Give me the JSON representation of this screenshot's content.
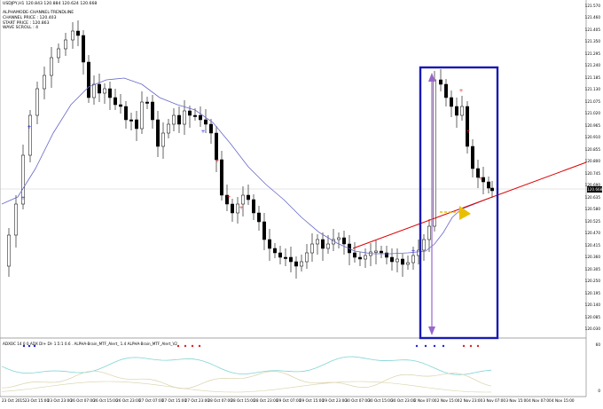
{
  "window": {
    "title": "USDJPY,H1  120.843 120.884 120.624 120.668"
  },
  "indicator_labels": [
    "ALPHAMODE-CHANNEL-TRENDLINE",
    "CHANNEL PRICE : 120.403",
    "START PRICE : 120.863",
    "WAVE SCROLL : 4"
  ],
  "price_axis": {
    "ticks": [
      "121.570",
      "121.460",
      "121.405",
      "121.350",
      "121.295",
      "121.240",
      "121.185",
      "121.130",
      "121.075",
      "121.020",
      "120.965",
      "120.910",
      "120.855",
      "120.800",
      "120.745",
      "120.690",
      "120.635",
      "120.580",
      "120.525",
      "120.470",
      "120.415",
      "120.360",
      "120.305",
      "120.250",
      "120.195",
      "120.140",
      "120.085",
      "120.030"
    ],
    "current_price": "120.668"
  },
  "time_axis": {
    "ticks": [
      "23 Oct 2015",
      "23 Oct 15:00",
      "23 Oct 23:00",
      "26 Oct 07:00",
      "26 Oct 15:00",
      "26 Oct 23:00",
      "27 Oct 07:00",
      "27 Oct 15:00",
      "27 Oct 23:00",
      "28 Oct 07:00",
      "28 Oct 15:00",
      "28 Oct 23:00",
      "29 Oct 07:00",
      "29 Oct 15:00",
      "29 Oct 23:00",
      "30 Oct 07:00",
      "30 Oct 15:00",
      "30 Oct 23:00",
      "2 Nov 07:00",
      "2 Nov 15:00",
      "2 Nov 23:00",
      "3 Nov 07:00",
      "3 Nov 15:00",
      "4 Nov 07:00",
      "4 Nov 15:00"
    ]
  },
  "sub_window": {
    "title": "ADXOC 14 0 0 ADX DI+ DI- 1.5:1 0.6 . ALPHA-Brain_MTF_Alert_ 1.4 ALPHA-Brain_MTF_Alert_V2",
    "axis_ticks": [
      "60",
      "0"
    ]
  },
  "colors": {
    "bull_candle": "#ffffff",
    "bear_candle": "#000000",
    "moving_average": "#6666cc",
    "trendline": "#dd0000",
    "highlight_box": "#1a1ab4",
    "range_arrow": "#9966cc",
    "signal_arrow": "#e8c000",
    "adx_line": "#7fd4d4",
    "di_line": "#d8d2a8",
    "blue_dot": "#2222dd",
    "red_dot": "#dd2222"
  },
  "annotations": {
    "highlight_box": "selected range",
    "arrow": "yellow signal arrow",
    "trend": "red channel trendline"
  }
}
